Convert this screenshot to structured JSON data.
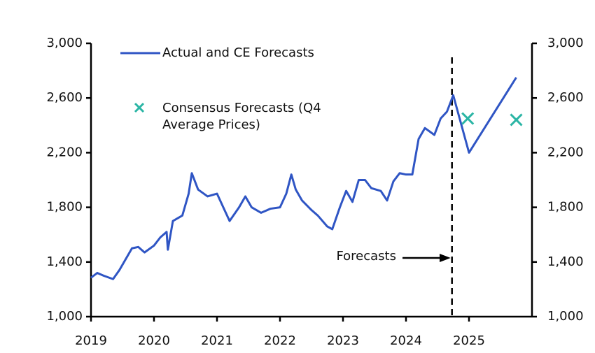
{
  "chart_data": {
    "type": "line",
    "xlim": [
      2019,
      2026
    ],
    "xticks": [
      2019,
      2020,
      2021,
      2022,
      2023,
      2024,
      2025
    ],
    "ylim": [
      1000,
      3000
    ],
    "yticks": [
      {
        "value": 1000,
        "label": "1,000"
      },
      {
        "value": 1400,
        "label": "1,400"
      },
      {
        "value": 1800,
        "label": "1,800"
      },
      {
        "value": 2200,
        "label": "2,200"
      },
      {
        "value": 2600,
        "label": "2,600"
      },
      {
        "value": 3000,
        "label": "3,000"
      }
    ],
    "y2lim": [
      1000,
      3000
    ],
    "y2ticks": [
      {
        "value": 1000,
        "label": "1,000"
      },
      {
        "value": 1400,
        "label": "1,400"
      },
      {
        "value": 1800,
        "label": "1,800"
      },
      {
        "value": 2200,
        "label": "2,200"
      },
      {
        "value": 2600,
        "label": "2,600"
      },
      {
        "value": 3000,
        "label": "3,000"
      }
    ],
    "forecast_start": 2024.73,
    "annotation": "Forecasts",
    "series": [
      {
        "name": "Actual and CE Forecasts",
        "color": "#2f55c4",
        "x": [
          2019.0,
          2019.1,
          2019.2,
          2019.35,
          2019.45,
          2019.55,
          2019.65,
          2019.75,
          2019.85,
          2020.0,
          2020.1,
          2020.2,
          2020.22,
          2020.3,
          2020.45,
          2020.55,
          2020.6,
          2020.7,
          2020.85,
          2021.0,
          2021.1,
          2021.2,
          2021.35,
          2021.45,
          2021.55,
          2021.7,
          2021.85,
          2022.0,
          2022.1,
          2022.18,
          2022.25,
          2022.35,
          2022.5,
          2022.6,
          2022.75,
          2022.83,
          2022.95,
          2023.05,
          2023.15,
          2023.25,
          2023.35,
          2023.45,
          2023.6,
          2023.7,
          2023.8,
          2023.9,
          2024.0,
          2024.1,
          2024.2,
          2024.3,
          2024.45,
          2024.55,
          2024.65,
          2024.75,
          2025.0,
          2025.75
        ],
        "values": [
          1285,
          1320,
          1300,
          1275,
          1340,
          1420,
          1500,
          1510,
          1470,
          1520,
          1580,
          1620,
          1490,
          1700,
          1740,
          1900,
          2050,
          1930,
          1880,
          1900,
          1800,
          1700,
          1800,
          1880,
          1800,
          1760,
          1790,
          1800,
          1900,
          2040,
          1930,
          1850,
          1780,
          1740,
          1660,
          1640,
          1800,
          1920,
          1840,
          2000,
          2000,
          1940,
          1920,
          1850,
          1990,
          2050,
          2040,
          2040,
          2300,
          2380,
          2330,
          2450,
          2500,
          2620,
          2200,
          2750
        ]
      },
      {
        "name": "Consensus Forecasts (Q4 Average Prices)",
        "color": "#2bb5a5",
        "marker": "x",
        "x": [
          2024.98,
          2025.75
        ],
        "values": [
          2450,
          2440
        ]
      }
    ]
  }
}
